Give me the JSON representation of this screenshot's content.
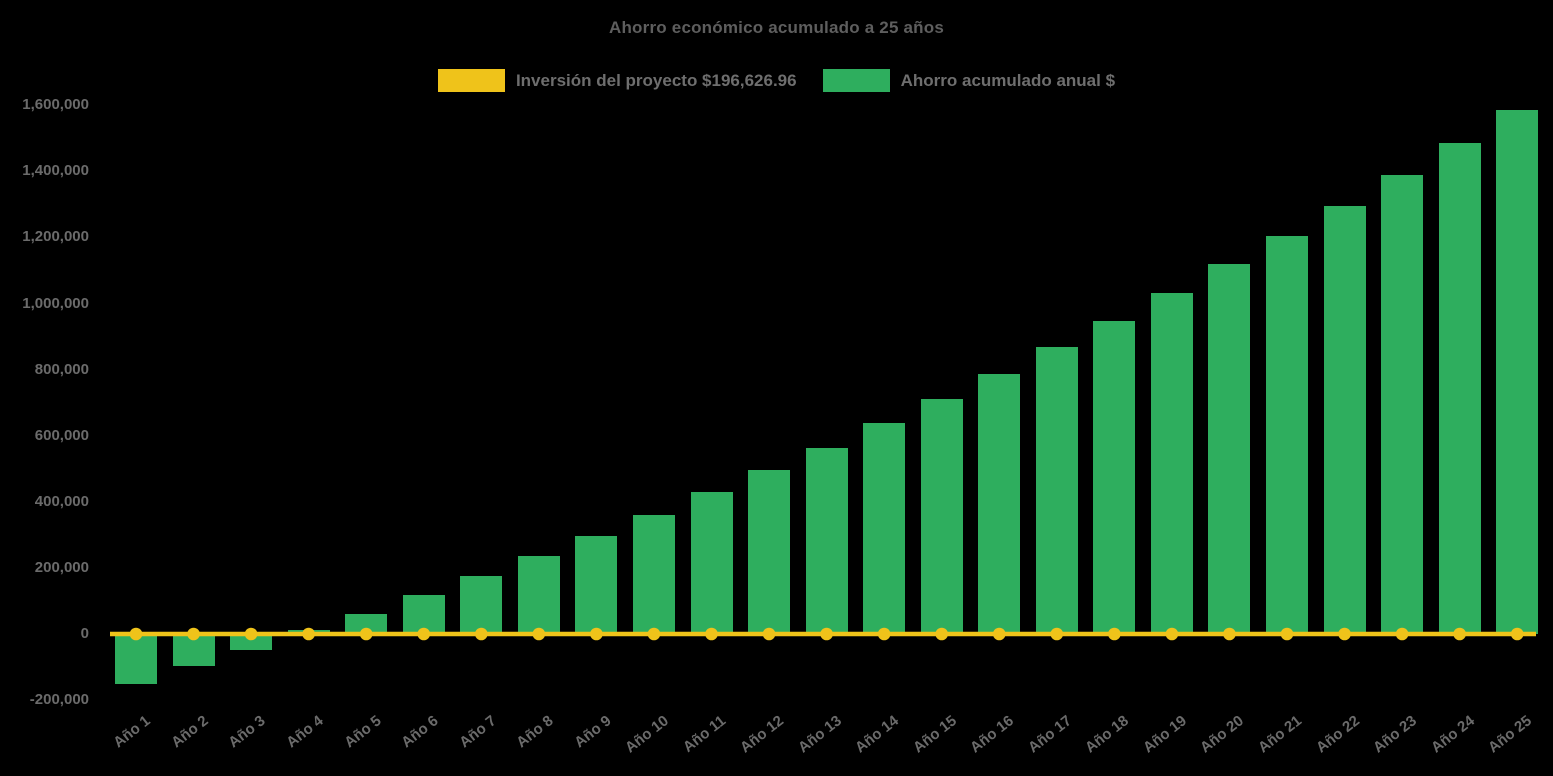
{
  "title": "Ahorro económico acumulado a 25 años",
  "colors": {
    "background": "#000000",
    "investment_yellow": "#efc31a",
    "savings_green": "#2eae5e",
    "title_text": "#5e5e5e",
    "axis_text": "#6b6b6b",
    "legend_text": "#6e6e6e"
  },
  "legend": {
    "items": [
      {
        "label": "Inversión del proyecto $196,626.96",
        "color": "#efc31a",
        "series": "investment"
      },
      {
        "label": "Ahorro acumulado anual $",
        "color": "#2eae5e",
        "series": "savings"
      }
    ]
  },
  "chart_data": {
    "type": "bar",
    "title": "Ahorro económico acumulado a 25 años",
    "categories": [
      "Año 1",
      "Año 2",
      "Año 3",
      "Año 4",
      "Año 5",
      "Año 6",
      "Año 7",
      "Año 8",
      "Año 9",
      "Año 10",
      "Año 11",
      "Año 12",
      "Año 13",
      "Año 14",
      "Año 15",
      "Año 16",
      "Año 17",
      "Año 18",
      "Año 19",
      "Año 20",
      "Año 21",
      "Año 22",
      "Año 23",
      "Año 24",
      "Año 25"
    ],
    "series": [
      {
        "name": "Inversión del proyecto $196,626.96",
        "type": "line",
        "color": "#efc31a",
        "marker": "circle",
        "values": [
          0,
          0,
          0,
          0,
          0,
          0,
          0,
          0,
          0,
          0,
          0,
          0,
          0,
          0,
          0,
          0,
          0,
          0,
          0,
          0,
          0,
          0,
          0,
          0,
          0
        ]
      },
      {
        "name": "Ahorro acumulado anual $",
        "type": "bar",
        "color": "#2eae5e",
        "values": [
          -151000,
          -98000,
          -49000,
          13000,
          62000,
          117000,
          175000,
          235000,
          296000,
          361000,
          429000,
          495000,
          563000,
          637000,
          710000,
          786000,
          867000,
          946000,
          1031000,
          1119000,
          1203000,
          1294000,
          1388000,
          1485000,
          1585000
        ]
      }
    ],
    "xlabel": "",
    "ylabel": "",
    "ylim": [
      -200000,
      1600000
    ],
    "ytick_step": 200000,
    "yticks": [
      {
        "value": 1600000,
        "label": "1,600,000"
      },
      {
        "value": 1400000,
        "label": "1,400,000"
      },
      {
        "value": 1200000,
        "label": "1,200,000"
      },
      {
        "value": 1000000,
        "label": "1,000,000"
      },
      {
        "value": 800000,
        "label": "800,000"
      },
      {
        "value": 600000,
        "label": "600,000"
      },
      {
        "value": 400000,
        "label": "400,000"
      },
      {
        "value": 200000,
        "label": "200,000"
      },
      {
        "value": 0,
        "label": "0"
      },
      {
        "value": -200000,
        "label": "-200,000"
      }
    ],
    "grid": false,
    "legend_position": "top",
    "x_tick_rotation_deg": -38
  }
}
